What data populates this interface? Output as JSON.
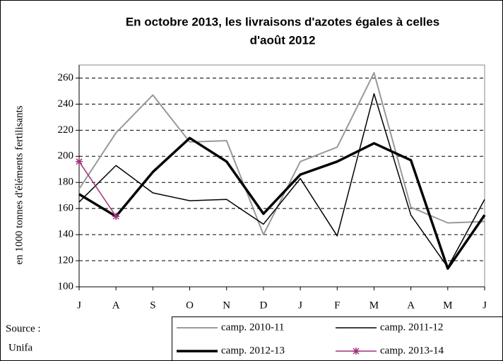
{
  "chart_data": {
    "type": "line",
    "title": [
      "En octobre 2013, les livraisons d'azotes égales à celles",
      "d'août 2012"
    ],
    "y_label": "en 1000 tonnes d'éléments fertilisants",
    "annotations": [
      "Source :",
      "Unifa"
    ],
    "categories": [
      "J",
      "A",
      "S",
      "O",
      "N",
      "D",
      "J",
      "F",
      "M",
      "A",
      "M",
      "J"
    ],
    "series": [
      {
        "name": "camp. 2010-11",
        "color": "#999999",
        "values": [
          175,
          218,
          247,
          211,
          212,
          140,
          196,
          207,
          264,
          161,
          149,
          150
        ]
      },
      {
        "name": "camp. 2011-12",
        "color": "#000000",
        "values": [
          165,
          193,
          172,
          166,
          167,
          148,
          183,
          139,
          248,
          155,
          115,
          167
        ]
      },
      {
        "name": "camp. 2012-13",
        "color": "#000000",
        "values": [
          171,
          154,
          188,
          214,
          196,
          156,
          186,
          196,
          210,
          197,
          114,
          155
        ]
      },
      {
        "name": "camp. 2013-14",
        "color": "#a0307a",
        "marker": "star",
        "values": [
          196,
          154,
          null,
          null,
          null,
          null,
          null,
          null,
          null,
          null,
          null,
          null
        ]
      }
    ],
    "ylim": [
      100,
      270
    ],
    "yticks": [
      100,
      120,
      140,
      160,
      180,
      200,
      220,
      240,
      260
    ],
    "grid": true
  }
}
